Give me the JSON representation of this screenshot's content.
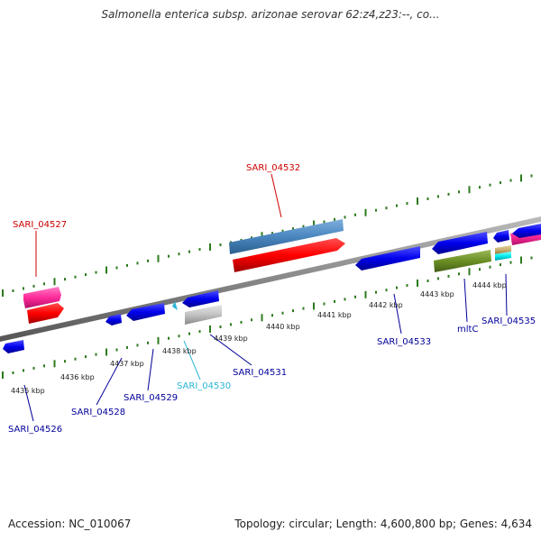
{
  "title": "Salmonella enterica subsp. arizonae serovar 62:z4,z23:--, co...",
  "footer": {
    "accession": "Accession: NC_010067",
    "topology": "Topology: circular; Length: 4,600,800 bp; Genes: 4,634"
  },
  "colors": {
    "backbone": "#888888",
    "tick": "#2d7a1e",
    "forward_label": "#cc0000",
    "reverse_label": "#00009a",
    "rna_label": "#2ab6d6"
  },
  "scale_labels": [
    "4435 kbp",
    "4436 kbp",
    "4437 kbp",
    "4438 kbp",
    "4439 kbp",
    "4440 kbp",
    "4441 kbp",
    "4442 kbp",
    "4443 kbp",
    "4444 kbp"
  ],
  "gene_labels": [
    {
      "text": "SARI_04527",
      "strand": "forward"
    },
    {
      "text": "SARI_04532",
      "strand": "forward"
    },
    {
      "text": "SARI_04526",
      "strand": "reverse"
    },
    {
      "text": "SARI_04528",
      "strand": "reverse"
    },
    {
      "text": "SARI_04529",
      "strand": "reverse"
    },
    {
      "text": "SARI_04530",
      "strand": "rna"
    },
    {
      "text": "SARI_04531",
      "strand": "reverse"
    },
    {
      "text": "SARI_04533",
      "strand": "reverse"
    },
    {
      "text": "mltC",
      "strand": "reverse"
    },
    {
      "text": "SARI_04535",
      "strand": "reverse"
    }
  ]
}
